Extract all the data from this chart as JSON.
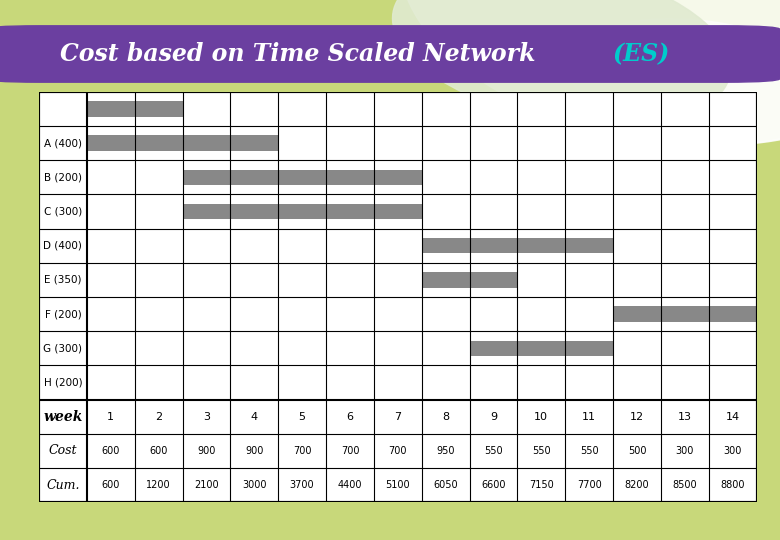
{
  "title_main": "Cost based on Time Scaled Network ",
  "title_es": "(ES)",
  "title_bg_color": "#6b3fa0",
  "title_text_color": "#ffffff",
  "title_es_color": "#00cccc",
  "bg_color": "#c8d87a",
  "activities": [
    "A (400)",
    "B (200)",
    "C (300)",
    "D (400)",
    "E (350)",
    "F (200)",
    "G (300)",
    "H (200)"
  ],
  "bars": [
    {
      "start": 1,
      "end": 2
    },
    {
      "start": 1,
      "end": 4
    },
    {
      "start": 3,
      "end": 7
    },
    {
      "start": 3,
      "end": 7
    },
    {
      "start": 8,
      "end": 11
    },
    {
      "start": 8,
      "end": 9
    },
    {
      "start": 12,
      "end": 14
    },
    {
      "start": 9,
      "end": 11
    }
  ],
  "weeks": [
    1,
    2,
    3,
    4,
    5,
    6,
    7,
    8,
    9,
    10,
    11,
    12,
    13,
    14
  ],
  "cost": [
    600,
    600,
    900,
    900,
    700,
    700,
    700,
    950,
    550,
    550,
    550,
    500,
    300,
    300
  ],
  "cumulative": [
    600,
    1200,
    2100,
    3000,
    3700,
    4400,
    5100,
    6050,
    6600,
    7150,
    7700,
    8200,
    8500,
    8800
  ],
  "bar_color": "#888888"
}
